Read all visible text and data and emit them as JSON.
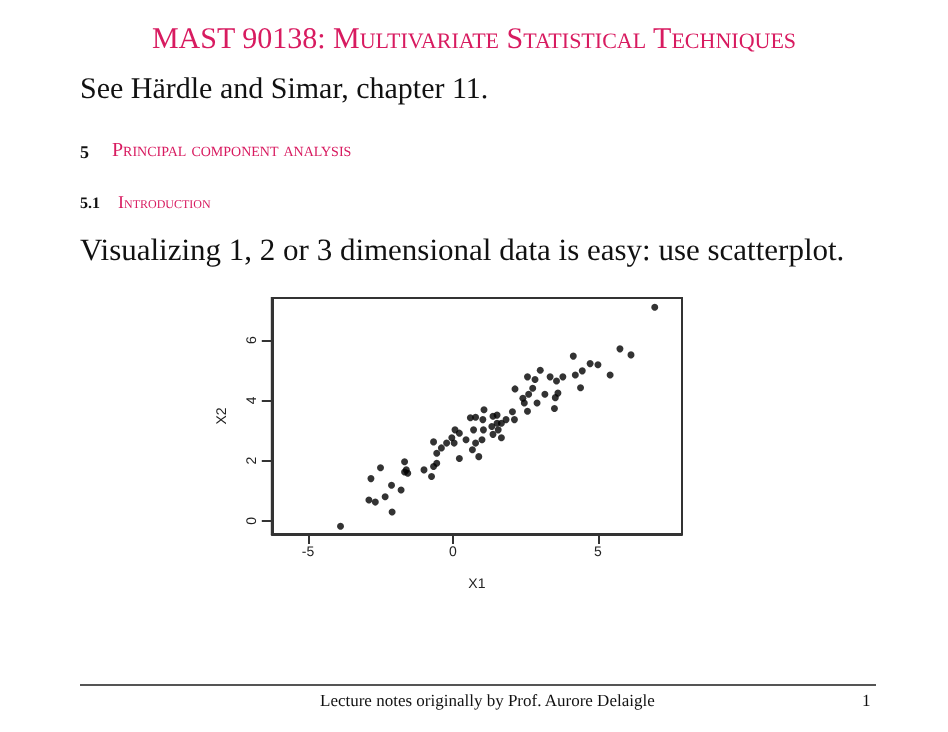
{
  "chart_data": {
    "type": "scatter",
    "title": "MAST 90138: Multivariate Statistical Techniques",
    "subtitle": "See Härdle and Simar, chapter 11.",
    "annotations": [
      "5",
      "Principal component analysis",
      "5.1",
      "Introduction",
      "Visualizing 1, 2 or 3 dimensional data is easy: use scatterplot.",
      "Lecture notes originally by Prof. Aurore Delaigle",
      "1"
    ],
    "xlabel": "X1",
    "ylabel": "X2",
    "marker": "circle",
    "color": "#000000",
    "x": [
      6.96,
      5.76,
      6.14,
      5.42,
      5.0,
      4.73,
      4.46,
      4.15,
      4.22,
      4.4,
      3.79,
      3.57,
      3.35,
      3.62,
      3.53,
      3.5,
      3.17,
      3.01,
      2.83,
      2.57,
      2.75,
      2.61,
      2.41,
      2.57,
      2.46,
      2.9,
      2.14,
      2.05,
      2.12,
      1.83,
      1.67,
      1.52,
      1.38,
      1.52,
      1.34,
      1.56,
      1.67,
      1.38,
      1.07,
      1.03,
      1.05,
      1.0,
      0.78,
      0.6,
      0.71,
      0.78,
      0.67,
      0.89,
      0.45,
      0.22,
      0.07,
      -0.04,
      -0.22,
      0.04,
      0.22,
      -0.4,
      -0.67,
      -0.56,
      -0.56,
      -0.67,
      -0.74,
      -1.0,
      -1.67,
      -1.61,
      -1.56,
      -1.67,
      -1.79,
      -2.12,
      -2.5,
      -2.83,
      -2.34,
      -2.9,
      -2.68,
      -2.1,
      -3.88
    ],
    "values": [
      7.09,
      5.71,
      5.51,
      4.84,
      5.18,
      5.22,
      4.98,
      5.47,
      4.84,
      4.42,
      4.78,
      4.64,
      4.78,
      4.24,
      4.09,
      3.73,
      4.2,
      5.0,
      4.69,
      4.78,
      4.4,
      4.2,
      4.07,
      3.64,
      3.91,
      3.91,
      4.38,
      3.62,
      3.36,
      3.36,
      3.24,
      3.51,
      3.47,
      3.24,
      3.13,
      3.02,
      2.76,
      2.87,
      3.69,
      3.36,
      3.02,
      2.69,
      3.44,
      3.42,
      3.02,
      2.58,
      2.36,
      2.13,
      2.69,
      2.91,
      3.02,
      2.76,
      2.58,
      2.58,
      2.07,
      2.42,
      2.62,
      2.24,
      1.91,
      1.8,
      1.47,
      1.69,
      1.96,
      1.69,
      1.58,
      1.62,
      1.02,
      1.18,
      1.76,
      1.4,
      0.8,
      0.69,
      0.62,
      0.29,
      -0.18
    ],
    "xlim": [
      -6.25,
      7.9
    ],
    "ylim": [
      -0.44,
      7.4
    ],
    "xticks": [
      -5,
      0,
      5
    ],
    "yticks": [
      0,
      2,
      4,
      6
    ]
  }
}
